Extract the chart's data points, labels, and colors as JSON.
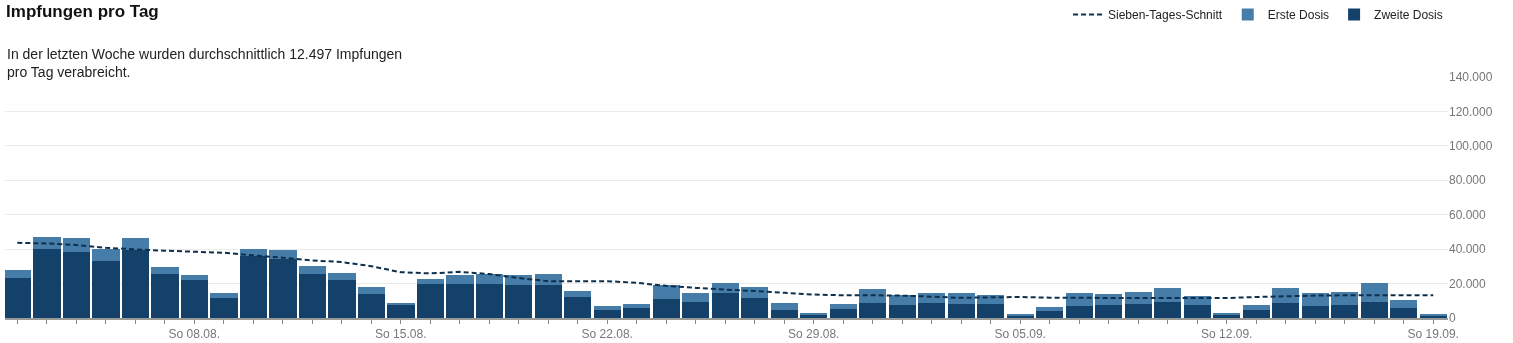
{
  "chart_data": {
    "type": "bar",
    "title": "Impfungen pro Tag",
    "subtitle": "In der letzten Woche wurden durchschnittlich 12.497 Impfungen\npro Tag verabreicht.",
    "stacked": true,
    "grid": "y",
    "legend": "top right",
    "x": [
      "--08-02",
      "--08-03",
      "--08-04",
      "--08-05",
      "--08-06",
      "--08-07",
      "--08-08",
      "--08-09",
      "--08-10",
      "--08-11",
      "--08-12",
      "--08-13",
      "--08-14",
      "--08-15",
      "--08-16",
      "--08-17",
      "--08-18",
      "--08-19",
      "--08-20",
      "--08-21",
      "--08-22",
      "--08-23",
      "--08-24",
      "--08-25",
      "--08-26",
      "--08-27",
      "--08-28",
      "--08-29",
      "--08-30",
      "--08-31",
      "--09-01",
      "--09-02",
      "--09-03",
      "--09-04",
      "--09-05",
      "--09-06",
      "--09-07",
      "--09-08",
      "--09-09",
      "--09-10",
      "--09-11",
      "--09-12",
      "--09-13",
      "--09-14",
      "--09-15",
      "--09-16",
      "--09-17",
      "--09-18",
      "--09-19"
    ],
    "xlim": [
      "--08-01T14:00",
      "--09-19T12:00"
    ],
    "xticks": [
      {
        "value": "--08-02",
        "label": null
      },
      {
        "value": "--08-03",
        "label": null
      },
      {
        "value": "--08-04",
        "label": null
      },
      {
        "value": "--08-05",
        "label": null
      },
      {
        "value": "--08-06",
        "label": null
      },
      {
        "value": "--08-07",
        "label": null
      },
      {
        "value": "--08-08",
        "label": "So 08.08."
      },
      {
        "value": "--08-09",
        "label": null
      },
      {
        "value": "--08-10",
        "label": null
      },
      {
        "value": "--08-11",
        "label": null
      },
      {
        "value": "--08-12",
        "label": null
      },
      {
        "value": "--08-13",
        "label": null
      },
      {
        "value": "--08-14",
        "label": null
      },
      {
        "value": "--08-15",
        "label": "So 15.08."
      },
      {
        "value": "--08-16",
        "label": null
      },
      {
        "value": "--08-17",
        "label": null
      },
      {
        "value": "--08-18",
        "label": null
      },
      {
        "value": "--08-19",
        "label": null
      },
      {
        "value": "--08-20",
        "label": null
      },
      {
        "value": "--08-21",
        "label": null
      },
      {
        "value": "--08-22",
        "label": "So 22.08."
      },
      {
        "value": "--08-23",
        "label": null
      },
      {
        "value": "--08-24",
        "label": null
      },
      {
        "value": "--08-25",
        "label": null
      },
      {
        "value": "--08-26",
        "label": null
      },
      {
        "value": "--08-27",
        "label": null
      },
      {
        "value": "--08-28",
        "label": null
      },
      {
        "value": "--08-29",
        "label": "So 29.08."
      },
      {
        "value": "--08-30",
        "label": null
      },
      {
        "value": "--08-31",
        "label": null
      },
      {
        "value": "--09-01",
        "label": null
      },
      {
        "value": "--09-02",
        "label": null
      },
      {
        "value": "--09-03",
        "label": null
      },
      {
        "value": "--09-04",
        "label": null
      },
      {
        "value": "--09-05",
        "label": "So 05.09."
      },
      {
        "value": "--09-06",
        "label": null
      },
      {
        "value": "--09-07",
        "label": null
      },
      {
        "value": "--09-08",
        "label": null
      },
      {
        "value": "--09-09",
        "label": null
      },
      {
        "value": "--09-10",
        "label": null
      },
      {
        "value": "--09-11",
        "label": null
      },
      {
        "value": "--09-12",
        "label": "So 12.09."
      },
      {
        "value": "--09-13",
        "label": null
      },
      {
        "value": "--09-14",
        "label": null
      },
      {
        "value": "--09-15",
        "label": null
      },
      {
        "value": "--09-16",
        "label": null
      },
      {
        "value": "--09-17",
        "label": null
      },
      {
        "value": "--09-18",
        "label": null
      },
      {
        "value": "--09-19",
        "label": "So 19.09."
      }
    ],
    "ylim": [
      0,
      140000
    ],
    "yticks": [
      0,
      {
        "value": 20000,
        "label": "20.000"
      },
      {
        "value": 40000,
        "label": "40.000"
      },
      {
        "value": 60000,
        "label": "60.000"
      },
      {
        "value": 80000,
        "label": "80.000"
      },
      {
        "value": 100000,
        "label": "100.000"
      },
      {
        "value": 120000,
        "label": "120.000"
      },
      {
        "value": 140000,
        "label": "140.000"
      }
    ],
    "series": [
      {
        "name": "Sieben-Tages-Schnitt",
        "type": "line",
        "line_style": "dashed",
        "marker": "none",
        "color": "#0e2f4b",
        "values": [
          43700,
          43300,
          42400,
          40800,
          39900,
          39100,
          38500,
          37900,
          36400,
          35000,
          33400,
          32500,
          30100,
          26600,
          25900,
          26800,
          25500,
          23200,
          21400,
          21400,
          21400,
          20400,
          18700,
          17500,
          16500,
          15700,
          14600,
          13600,
          13200,
          13200,
          13000,
          12400,
          11700,
          12000,
          12200,
          11800,
          11800,
          11600,
          11600,
          11600,
          11600,
          11600,
          12200,
          12600,
          13000,
          13200,
          13200,
          13200,
          13200
        ]
      },
      {
        "name": "Zweite Dosis",
        "color": "#134169",
        "values": [
          23500,
          39900,
          38100,
          33400,
          39500,
          25300,
          21800,
          11900,
          36000,
          34400,
          25300,
          21800,
          14200,
          7800,
          20000,
          20000,
          20000,
          19400,
          19400,
          12400,
          4900,
          6000,
          11300,
          9500,
          14800,
          11900,
          4900,
          1900,
          5400,
          8900,
          7800,
          8900,
          8400,
          8000,
          1200,
          4100,
          6800,
          7600,
          8300,
          9300,
          7600,
          1700,
          4800,
          8900,
          7000,
          7600,
          9300,
          6000,
          1700
        ]
      },
      {
        "name": "Erste Dosis",
        "color": "#457ca8",
        "values": [
          4100,
          7000,
          8200,
          6500,
          6800,
          4100,
          2900,
          2900,
          3900,
          4900,
          5200,
          4100,
          4100,
          1100,
          2900,
          4700,
          5300,
          5300,
          5900,
          3500,
          2300,
          2400,
          7600,
          5300,
          5800,
          6400,
          4000,
          1200,
          3000,
          8200,
          5800,
          5900,
          6400,
          5300,
          1300,
          2300,
          7900,
          6400,
          7000,
          8300,
          5200,
          1200,
          2800,
          8700,
          7700,
          7700,
          11100,
          4500,
          800
        ]
      }
    ]
  }
}
